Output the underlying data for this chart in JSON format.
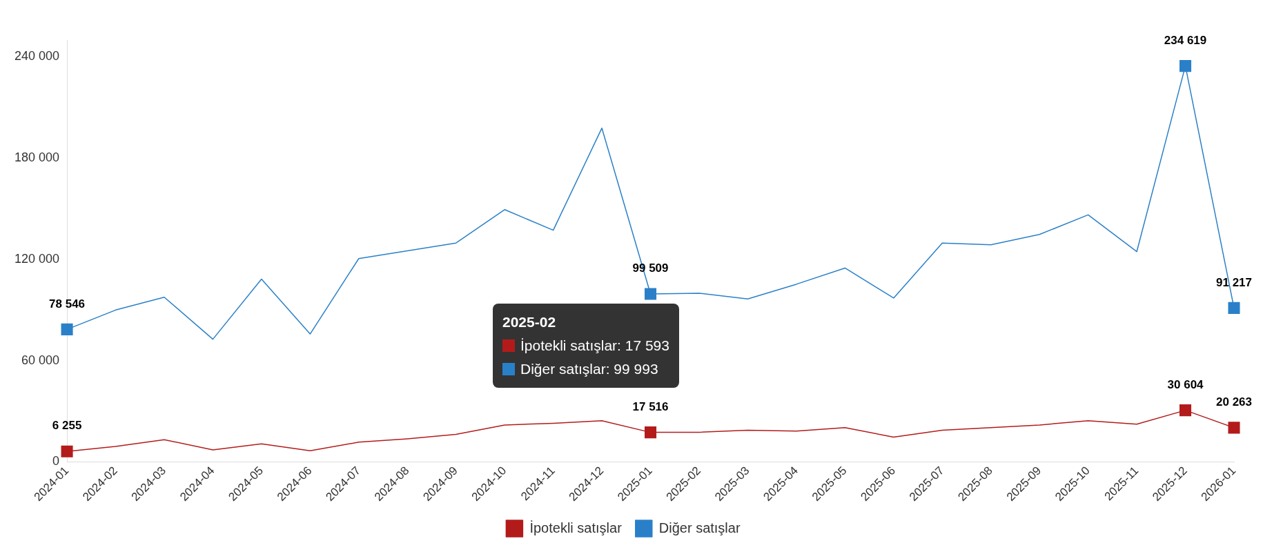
{
  "chart_data": {
    "type": "line",
    "categories": [
      "2024-01",
      "2024-02",
      "2024-03",
      "2024-04",
      "2024-05",
      "2024-06",
      "2024-07",
      "2024-08",
      "2024-09",
      "2024-10",
      "2024-11",
      "2024-12",
      "2025-01",
      "2025-02",
      "2025-03",
      "2025-04",
      "2025-05",
      "2025-06",
      "2025-07",
      "2025-08",
      "2025-09",
      "2025-10",
      "2025-11",
      "2025-12",
      "2026-01"
    ],
    "series": [
      {
        "name": "İpotekli satışlar",
        "color": "#b31b1b",
        "values": [
          6255,
          9200,
          13200,
          7100,
          10700,
          6600,
          11700,
          13700,
          16300,
          21900,
          22900,
          24400,
          17516,
          17593,
          18800,
          18300,
          20300,
          14700,
          18800,
          20300,
          21900,
          24400,
          22400,
          30604,
          20263
        ],
        "value_labels": [
          "6 255",
          null,
          null,
          null,
          null,
          null,
          null,
          null,
          null,
          null,
          null,
          null,
          "17 516",
          null,
          null,
          null,
          null,
          null,
          null,
          null,
          null,
          null,
          null,
          "30 604",
          "20 263"
        ]
      },
      {
        "name": "Diğer satışlar",
        "color": "#2a80c8",
        "values": [
          78546,
          90000,
          97600,
          72700,
          108300,
          75800,
          120500,
          125100,
          129700,
          149500,
          137300,
          197800,
          99509,
          99993,
          96600,
          105300,
          114900,
          97100,
          129700,
          128700,
          134800,
          146400,
          124600,
          234619,
          91217
        ],
        "value_labels": [
          "78 546",
          null,
          null,
          null,
          null,
          null,
          null,
          null,
          null,
          null,
          null,
          null,
          "99 509",
          null,
          null,
          null,
          null,
          null,
          null,
          null,
          null,
          null,
          null,
          "234 619",
          "91 217"
        ]
      }
    ],
    "ylim": [
      0,
      250000
    ],
    "yticks": [
      {
        "value": 0,
        "label": "0"
      },
      {
        "value": 60000,
        "label": "60 000"
      },
      {
        "value": 120000,
        "label": "120 000"
      },
      {
        "value": 180000,
        "label": "180 000"
      },
      {
        "value": 240000,
        "label": "240 000"
      }
    ],
    "grid": false,
    "legend": "bottom",
    "line_style": "solid",
    "annotations": [
      "2025-02",
      "İpotekli satışlar: 17 593",
      "Diğer satışlar: 99 993"
    ]
  }
}
